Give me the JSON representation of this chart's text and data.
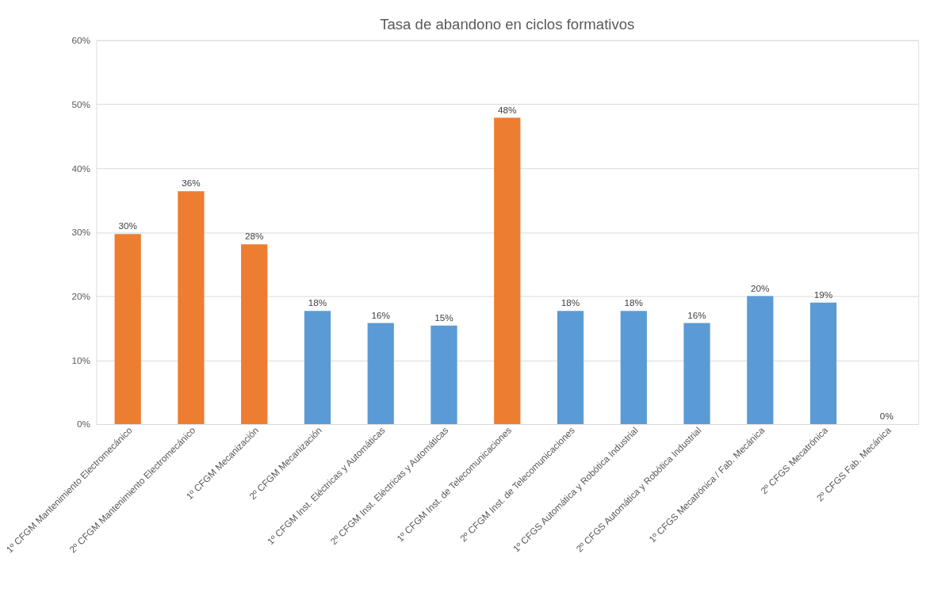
{
  "chart_data": {
    "type": "bar",
    "title": "Tasa de abandono en ciclos formativos",
    "categories": [
      "1º CFGM Mantenimiento Electromecánico",
      "2º CFGM Mantenimiento Electromecánico",
      "1º CFGM Mecanización",
      "2º CFGM Mecanización",
      "1º CFGM Inst. Eléctricas y Automáticas",
      "2º CFGM Inst. Eléctricas y Automáticas",
      "1º CFGM Inst. de Telecomunicaciones",
      "2º CFGM Inst. de Telecomunicaciones",
      "1º CFGS Automática y Robótica Industrial",
      "2º CFGS Automática y Robótica Industrial",
      "1º CFGS Mecatrónica / Fab. Mecánica",
      "2º CFGS Mecatrónica",
      "2º CFGS Fab. Mecánica"
    ],
    "values": [
      29.7,
      36.4,
      28.1,
      17.7,
      15.8,
      15.4,
      47.9,
      17.7,
      17.7,
      15.8,
      20.0,
      19.0,
      0
    ],
    "value_labels": [
      "30%",
      "36%",
      "28%",
      "18%",
      "16%",
      "15%",
      "48%",
      "18%",
      "18%",
      "16%",
      "20%",
      "19%",
      "0%"
    ],
    "colors": [
      "#ed7d31",
      "#ed7d31",
      "#ed7d31",
      "#5b9bd5",
      "#5b9bd5",
      "#5b9bd5",
      "#ed7d31",
      "#5b9bd5",
      "#5b9bd5",
      "#5b9bd5",
      "#5b9bd5",
      "#5b9bd5",
      "#5b9bd5"
    ],
    "ylim": [
      0,
      60
    ],
    "yticks": [
      {
        "value": 0,
        "label": "0%"
      },
      {
        "value": 10,
        "label": "10%"
      },
      {
        "value": 20,
        "label": "20%"
      },
      {
        "value": 30,
        "label": "30%"
      },
      {
        "value": 40,
        "label": "40%"
      },
      {
        "value": 50,
        "label": "50%"
      },
      {
        "value": 60,
        "label": "60%"
      }
    ],
    "grid": "y"
  }
}
